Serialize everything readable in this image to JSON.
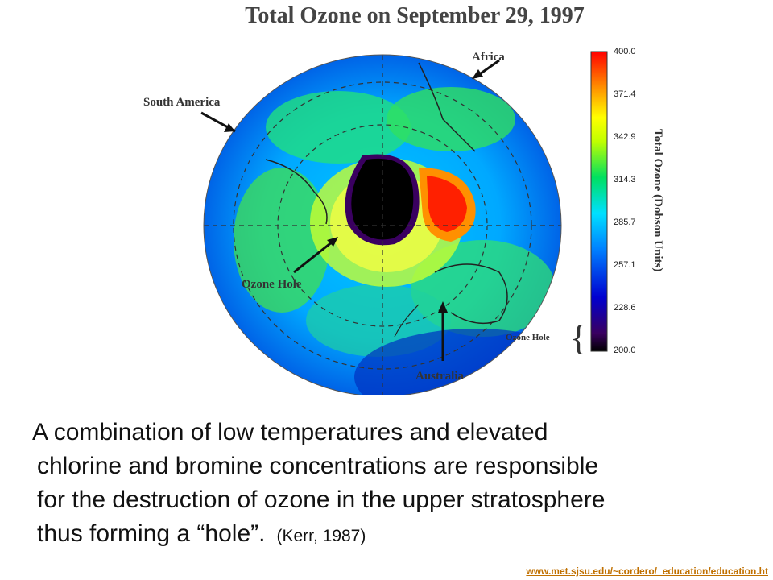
{
  "title": "Total Ozone on September 29, 1997",
  "map": {
    "labels": {
      "south_america": "South America",
      "africa": "Africa",
      "ozone_hole": "Ozone Hole",
      "australia": "Australia"
    }
  },
  "color_scale": {
    "title": "Total Ozone (Dobson Units)",
    "ticks": [
      "400.0",
      "371.4",
      "342.9",
      "314.3",
      "285.7",
      "257.1",
      "228.6",
      "200.0"
    ],
    "bracket_label": "Ozone Hole",
    "colors": [
      "#000000",
      "#3a0060",
      "#0000d0",
      "#0080ff",
      "#00e0ff",
      "#00e060",
      "#c0ff00",
      "#ffff00",
      "#ff9000",
      "#ff0000"
    ]
  },
  "caption": {
    "line1": "A combination of low temperatures and elevated",
    "line2": "chlorine and bromine concentrations are responsible",
    "line3": "for the destruction of ozone in the upper stratosphere",
    "line4": "thus forming a “hole”.",
    "citation": "(Kerr, 1987)"
  },
  "source": "www.met.sjsu.edu/~cordero/_education/education.ht"
}
